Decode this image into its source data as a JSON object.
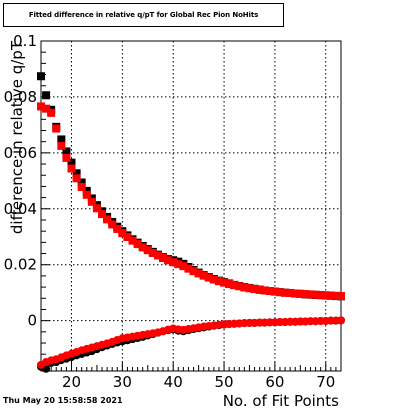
{
  "title": "Fitted difference in relative q/pT for Global Rec Pion NoHits",
  "timestamp": "Thu May 20 15:58:58 2021",
  "chart_data": {
    "type": "scatter",
    "xlabel": "No. of Fit Points",
    "ylabel": "difference in relative q/pT",
    "xlim": [
      14,
      73
    ],
    "ylim": [
      -0.018,
      0.1
    ],
    "x_ticks": [
      20,
      30,
      40,
      50,
      60,
      70
    ],
    "y_ticks": [
      0,
      0.02,
      0.04,
      0.06,
      0.08,
      0.1
    ],
    "x_tick_labels": [
      "20",
      "30",
      "40",
      "50",
      "60",
      "70"
    ],
    "y_tick_labels": [
      "0",
      "0.02",
      "0.04",
      "0.06",
      "0.08",
      "0.1"
    ],
    "grid": true,
    "series": [
      {
        "color": "#000000",
        "marker": "square",
        "x": [
          14,
          15,
          16,
          17,
          18,
          19,
          20,
          21,
          22,
          23,
          24,
          25,
          26,
          27,
          28,
          29,
          30,
          31,
          32,
          33,
          34,
          35,
          36,
          37,
          38,
          39,
          40,
          41,
          42,
          43,
          44,
          45,
          46,
          47,
          48,
          49,
          50,
          51,
          52,
          53,
          54,
          55,
          56,
          57,
          58,
          59,
          60,
          61,
          62,
          63,
          64,
          65,
          66,
          67,
          68,
          69,
          70,
          71,
          72,
          73
        ],
        "y": [
          0.0874,
          0.0806,
          0.0754,
          0.0693,
          0.0648,
          0.0605,
          0.0565,
          0.0527,
          0.0494,
          0.0464,
          0.0437,
          0.0413,
          0.0391,
          0.0371,
          0.0353,
          0.0336,
          0.032,
          0.0305,
          0.0291,
          0.0279,
          0.0267,
          0.0256,
          0.0246,
          0.0236,
          0.0227,
          0.022,
          0.0216,
          0.0211,
          0.0203,
          0.0192,
          0.0181,
          0.0172,
          0.0163,
          0.0156,
          0.0149,
          0.0143,
          0.0138,
          0.0133,
          0.0128,
          0.0124,
          0.012,
          0.0117,
          0.0114,
          0.0111,
          0.0108,
          0.0106,
          0.0104,
          0.0102,
          0.01,
          0.0099,
          0.0097,
          0.0096,
          0.0094,
          0.0093,
          0.0092,
          0.0091,
          0.009,
          0.0089,
          0.0088,
          0.0087
        ]
      },
      {
        "color": "#ff0000",
        "marker": "square",
        "x": [
          14,
          15,
          16,
          17,
          18,
          19,
          20,
          21,
          22,
          23,
          24,
          25,
          26,
          27,
          28,
          29,
          30,
          31,
          32,
          33,
          34,
          35,
          36,
          37,
          38,
          39,
          40,
          41,
          42,
          43,
          44,
          45,
          46,
          47,
          48,
          49,
          50,
          51,
          52,
          53,
          54,
          55,
          56,
          57,
          58,
          59,
          60,
          61,
          62,
          63,
          64,
          65,
          66,
          67,
          68,
          69,
          70,
          71,
          72,
          73
        ],
        "y": [
          0.0766,
          0.0758,
          0.0743,
          0.0687,
          0.0625,
          0.0582,
          0.0544,
          0.0509,
          0.0478,
          0.045,
          0.0425,
          0.0402,
          0.0381,
          0.0362,
          0.0344,
          0.0328,
          0.0313,
          0.0299,
          0.0286,
          0.0274,
          0.0262,
          0.0252,
          0.0242,
          0.0233,
          0.0224,
          0.0216,
          0.0209,
          0.0202,
          0.0195,
          0.0186,
          0.0177,
          0.0169,
          0.0161,
          0.0154,
          0.0147,
          0.0141,
          0.0136,
          0.0131,
          0.0127,
          0.0123,
          0.0119,
          0.0116,
          0.0113,
          0.011,
          0.0108,
          0.0106,
          0.0104,
          0.0102,
          0.01,
          0.0099,
          0.0097,
          0.0096,
          0.0095,
          0.0094,
          0.0093,
          0.0092,
          0.0091,
          0.009,
          0.0089,
          0.0088
        ]
      },
      {
        "color": "#000000",
        "marker": "circle",
        "x": [
          14,
          15,
          16,
          17,
          18,
          19,
          20,
          21,
          22,
          23,
          24,
          25,
          26,
          27,
          28,
          29,
          30,
          31,
          32,
          33,
          34,
          35,
          36,
          37,
          38,
          39,
          40,
          41,
          42,
          43,
          44,
          45,
          46,
          47,
          48,
          49,
          50,
          51,
          52,
          53,
          54,
          55,
          56,
          57,
          58,
          59,
          60,
          61,
          62,
          63,
          64,
          65,
          66,
          67,
          68,
          69,
          70,
          71,
          72,
          73
        ],
        "y": [
          -0.0165,
          -0.0172,
          -0.0151,
          -0.0148,
          -0.0141,
          -0.0136,
          -0.013,
          -0.0124,
          -0.0119,
          -0.0114,
          -0.0109,
          -0.0102,
          -0.0095,
          -0.0089,
          -0.0083,
          -0.0078,
          -0.0074,
          -0.007,
          -0.0066,
          -0.0062,
          -0.0058,
          -0.0053,
          -0.0048,
          -0.0043,
          -0.0038,
          -0.0034,
          -0.0031,
          -0.0036,
          -0.0038,
          -0.0034,
          -0.003,
          -0.0027,
          -0.0024,
          -0.0021,
          -0.0018,
          -0.0016,
          -0.0014,
          -0.0012,
          -0.0011,
          -0.001,
          -0.0009,
          -0.0008,
          -0.0008,
          -0.0007,
          -0.0007,
          -0.0006,
          -0.0006,
          -0.0005,
          -0.0005,
          -0.0004,
          -0.0004,
          -0.0003,
          -0.0003,
          -0.0002,
          -0.0002,
          -0.0001,
          -0.0001,
          0.0,
          0.0,
          0.0001
        ]
      },
      {
        "color": "#ff0000",
        "marker": "circle",
        "x": [
          14,
          15,
          16,
          17,
          18,
          19,
          20,
          21,
          22,
          23,
          24,
          25,
          26,
          27,
          28,
          29,
          30,
          31,
          32,
          33,
          34,
          35,
          36,
          37,
          38,
          39,
          40,
          41,
          42,
          43,
          44,
          45,
          46,
          47,
          48,
          49,
          50,
          51,
          52,
          53,
          54,
          55,
          56,
          57,
          58,
          59,
          60,
          61,
          62,
          63,
          64,
          65,
          66,
          67,
          68,
          69,
          70,
          71,
          72,
          73
        ],
        "y": [
          -0.0158,
          -0.0148,
          -0.0142,
          -0.0138,
          -0.0131,
          -0.0124,
          -0.0118,
          -0.0112,
          -0.0106,
          -0.0101,
          -0.0096,
          -0.0091,
          -0.0086,
          -0.0081,
          -0.0076,
          -0.0069,
          -0.0063,
          -0.006,
          -0.0057,
          -0.0054,
          -0.0051,
          -0.0048,
          -0.0045,
          -0.0042,
          -0.0038,
          -0.0032,
          -0.0028,
          -0.0031,
          -0.0033,
          -0.003,
          -0.0027,
          -0.0024,
          -0.0021,
          -0.0019,
          -0.0017,
          -0.0015,
          -0.0013,
          -0.0012,
          -0.0011,
          -0.001,
          -0.0009,
          -0.0008,
          -0.0008,
          -0.0007,
          -0.0007,
          -0.0006,
          -0.0006,
          -0.0005,
          -0.0005,
          -0.0004,
          -0.0004,
          -0.0003,
          -0.0003,
          -0.0002,
          -0.0002,
          -0.0001,
          -0.0001,
          0.0,
          0.0,
          0.0001
        ]
      }
    ]
  }
}
